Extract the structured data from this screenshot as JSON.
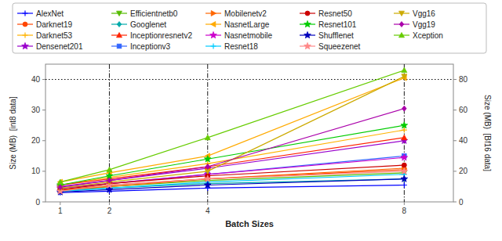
{
  "chart_data": {
    "type": "line",
    "xlabel": "Batch Sizes",
    "ylabel": "Size (MB)  [int8 data]",
    "y2label": "Size (MB)  [Bf16 data]",
    "x": [
      1,
      2,
      4,
      8
    ],
    "series": [
      {
        "name": "AlexNet",
        "color": "#0000FF",
        "marker": "plus",
        "line_style": "solid",
        "values": [
          3.0,
          3.5,
          4.5,
          5.5
        ]
      },
      {
        "name": "Darknet19",
        "color": "#FF4500",
        "marker": "circle",
        "line_style": "solid",
        "values": [
          3.8,
          5.5,
          7.5,
          10.5
        ]
      },
      {
        "name": "Darknet53",
        "color": "#FFB300",
        "marker": "plus",
        "line_style": "solid",
        "values": [
          5.5,
          8.0,
          12.5,
          23.5
        ]
      },
      {
        "name": "Densenet201",
        "color": "#9900CC",
        "marker": "star",
        "line_style": "solid",
        "values": [
          5.0,
          7.0,
          11.0,
          20.0
        ]
      },
      {
        "name": "Efficientnetb0",
        "color": "#55BB00",
        "marker": "triangle-down",
        "line_style": "solid",
        "values": [
          3.5,
          5.0,
          7.0,
          9.5
        ]
      },
      {
        "name": "Googlenet",
        "color": "#00AAAA",
        "marker": "diamond",
        "line_style": "solid",
        "values": [
          3.5,
          4.5,
          6.0,
          7.5
        ]
      },
      {
        "name": "Inceptionresnetv2",
        "color": "#FF2200",
        "marker": "triangle-up",
        "line_style": "solid",
        "values": [
          5.5,
          7.5,
          11.5,
          21.0
        ]
      },
      {
        "name": "Inceptionv3",
        "color": "#3366FF",
        "marker": "square",
        "line_style": "solid",
        "values": [
          4.5,
          6.0,
          9.0,
          15.0
        ]
      },
      {
        "name": "Mobilenetv2",
        "color": "#FF6600",
        "marker": "triangle-right",
        "line_style": "solid",
        "values": [
          3.8,
          5.0,
          7.5,
          11.0
        ]
      },
      {
        "name": "NasnetLarge",
        "color": "#FFAA00",
        "marker": "triangle-left",
        "line_style": "solid",
        "values": [
          6.5,
          9.5,
          15.0,
          40.5
        ]
      },
      {
        "name": "Nasnetmobile",
        "color": "#CC00CC",
        "marker": "star",
        "line_style": "solid",
        "values": [
          4.5,
          6.0,
          9.0,
          14.5
        ]
      },
      {
        "name": "Resnet18",
        "color": "#00CCFF",
        "marker": "plus",
        "line_style": "solid",
        "values": [
          3.5,
          4.5,
          6.5,
          9.0
        ]
      },
      {
        "name": "Resnet50",
        "color": "#CC0000",
        "marker": "circle",
        "line_style": "solid",
        "values": [
          4.0,
          6.0,
          8.5,
          12.0
        ]
      },
      {
        "name": "Resnet101",
        "color": "#00CC00",
        "marker": "star",
        "line_style": "solid",
        "values": [
          5.5,
          8.5,
          14.0,
          25.0
        ]
      },
      {
        "name": "Shufflenet",
        "color": "#0000BB",
        "marker": "star",
        "line_style": "solid",
        "values": [
          3.2,
          4.0,
          5.5,
          7.5
        ]
      },
      {
        "name": "Squeezenet",
        "color": "#FF8888",
        "marker": "star",
        "line_style": "solid",
        "values": [
          3.5,
          5.5,
          7.5,
          10.0
        ]
      },
      {
        "name": "Vgg16",
        "color": "#CCAA00",
        "marker": "triangle-down",
        "line_style": "solid",
        "values": [
          4.5,
          6.5,
          10.0,
          41.0
        ]
      },
      {
        "name": "Vgg19",
        "color": "#AA00AA",
        "marker": "diamond",
        "line_style": "solid",
        "values": [
          4.8,
          7.0,
          11.5,
          30.5
        ]
      },
      {
        "name": "Xception",
        "color": "#66CC00",
        "marker": "triangle-up",
        "line_style": "solid",
        "values": [
          6.5,
          10.5,
          21.0,
          43.0
        ]
      }
    ],
    "xlim": [
      0.7,
      9.0
    ],
    "ylim": [
      0,
      45
    ],
    "y2lim": [
      0,
      90
    ],
    "xticks": [
      1,
      2,
      4,
      8
    ],
    "yticks": [
      0,
      10,
      20,
      30,
      40
    ],
    "y2ticks": [
      0,
      20,
      40,
      60,
      80
    ],
    "hlines": [
      40
    ],
    "vlines": [
      2,
      4,
      8
    ],
    "grid": false,
    "legend": "top"
  }
}
